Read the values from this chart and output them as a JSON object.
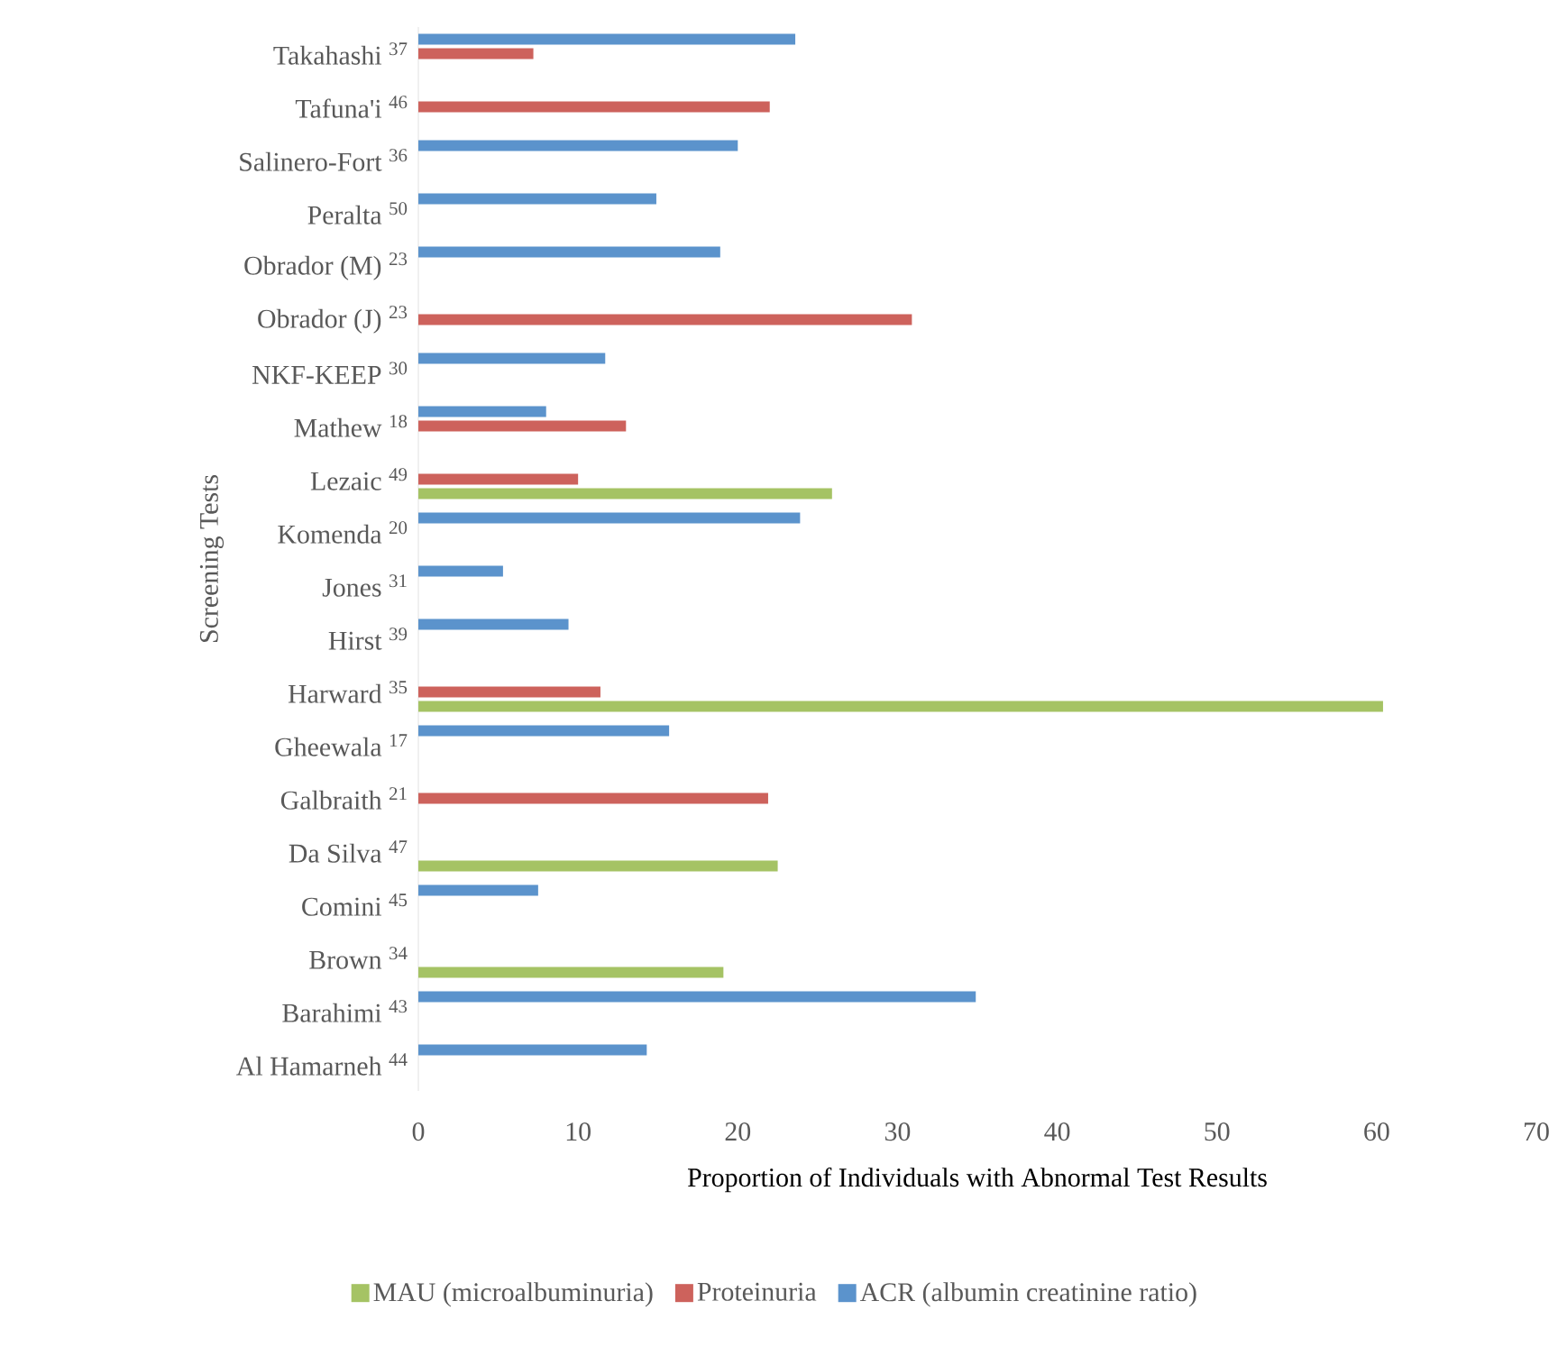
{
  "chart_data": {
    "type": "bar",
    "orientation": "horizontal",
    "xlabel": "Proportion of Individuals with Abnormal Test Results",
    "ylabel": "Screening Tests",
    "categories": [
      "Takahashi $^{37}$",
      "Tafuna'i $^{46}$",
      "Salinero-Fort $^{36}$",
      "Peralta $^{50}$",
      "Obrador (M) $^{23}$",
      "Obrador (J) $^{23}$",
      "NKF-KEEP $^{30}$",
      "Mathew $^{18}$",
      "Lezaic $^{49}$",
      "Komenda $^{20}$",
      "Jones $^{31}$",
      "Hirst $^{39}$",
      "Harward $^{35}$",
      "Gheewala $^{17}$",
      "Galbraith $^{21}$",
      "Da Silva $^{47}$",
      "Comini $^{45}$",
      "Brown $^{34}$",
      "Barahimi $^{43}$",
      "Al Hamarneh $^{44}$"
    ],
    "series": [
      {
        "name": "MAU (microalbuminuria)",
        "color": "#a5c364",
        "values": [
          null,
          null,
          null,
          null,
          null,
          null,
          null,
          null,
          25.9,
          null,
          null,
          null,
          60.4,
          null,
          null,
          22.5,
          null,
          19.1,
          null,
          null
        ]
      },
      {
        "name": "Proteinuria",
        "color": "#cd625c",
        "values": [
          7.2,
          22.0,
          null,
          null,
          null,
          30.9,
          null,
          13.0,
          10.0,
          null,
          null,
          null,
          11.4,
          null,
          21.9,
          null,
          null,
          null,
          null,
          null
        ]
      },
      {
        "name": "ACR (albumin creatinine ratio)",
        "color": "#5b93cc",
        "values": [
          23.6,
          null,
          20.0,
          14.9,
          18.9,
          null,
          11.7,
          8.0,
          null,
          23.9,
          5.3,
          9.4,
          null,
          15.7,
          null,
          null,
          7.5,
          null,
          34.9,
          14.3
        ]
      }
    ],
    "xlim": [
      0,
      70
    ],
    "xticks": [
      0,
      10,
      20,
      30,
      40,
      50,
      60,
      70
    ],
    "legend": "bottom"
  }
}
